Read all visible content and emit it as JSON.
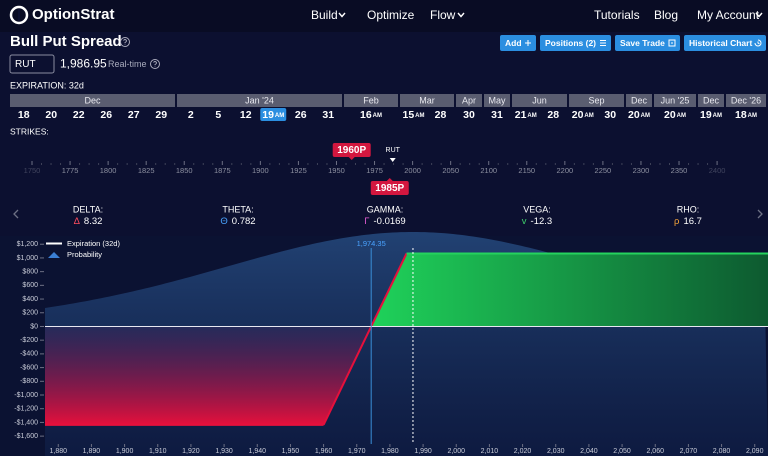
{
  "nav": {
    "logo": "OptionStrat",
    "items": [
      "Build",
      "Optimize",
      "Flow"
    ],
    "right": [
      "Tutorials",
      "Blog",
      "My Account"
    ]
  },
  "header": {
    "title": "Bull Put Spread",
    "buttons": [
      "Add",
      "Positions (2)",
      "Save Trade",
      "Historical Chart"
    ]
  },
  "symbol": {
    "ticker": "RUT",
    "price": {
      "value": 1986.95,
      "label": "1,986.95"
    },
    "feed": "Real-time"
  },
  "expiration": {
    "label": "EXPIRATION: 32d",
    "months": [
      {
        "name": "Dec",
        "dates": [
          "18",
          "20",
          "22",
          "26",
          "27",
          "29"
        ]
      },
      {
        "name": "Jan '24",
        "dates": [
          "2",
          "5",
          "12",
          {
            "day": "19",
            "session": "AM",
            "selected": true
          },
          "26",
          "31"
        ]
      },
      {
        "name": "Feb",
        "dates": [
          {
            "day": "16",
            "session": "AM"
          }
        ]
      },
      {
        "name": "Mar",
        "dates": [
          {
            "day": "15",
            "session": "AM"
          },
          "28"
        ]
      },
      {
        "name": "Apr",
        "dates": [
          "30"
        ]
      },
      {
        "name": "May",
        "dates": [
          "31"
        ]
      },
      {
        "name": "Jun",
        "dates": [
          {
            "day": "21",
            "session": "AM"
          },
          "28"
        ]
      },
      {
        "name": "Sep",
        "dates": [
          {
            "day": "20",
            "session": "AM"
          },
          "30"
        ]
      },
      {
        "name": "Dec",
        "dates": [
          {
            "day": "20",
            "session": "AM"
          }
        ]
      },
      {
        "name": "Jun '25",
        "dates": [
          {
            "day": "20",
            "session": "AM"
          }
        ]
      },
      {
        "name": "Dec",
        "dates": [
          {
            "day": "19",
            "session": "AM"
          }
        ]
      },
      {
        "name": "Dec '26",
        "dates": [
          {
            "day": "18",
            "session": "AM"
          }
        ]
      }
    ]
  },
  "strikes": {
    "label": "STRIKES:",
    "ticks": [
      1750,
      1775,
      1800,
      1825,
      1850,
      1875,
      1900,
      1925,
      1950,
      1975,
      2000,
      2050,
      2100,
      2150,
      2200,
      2250,
      2300,
      2350,
      2400
    ],
    "legs": [
      {
        "label": "1960P",
        "strike": 1960,
        "color": "#d3173f"
      },
      {
        "label": "1985P",
        "strike": 1985,
        "color": "#d3173f"
      }
    ],
    "underlying": "RUT"
  },
  "greeks": [
    {
      "name": "DELTA:",
      "symbol": "Δ",
      "value": 8.32,
      "color": "#ff4d5e"
    },
    {
      "name": "THETA:",
      "symbol": "Θ",
      "value": 0.782,
      "color": "#4aa3ff"
    },
    {
      "name": "GAMMA:",
      "symbol": "Γ",
      "value": -0.0169,
      "color": "#e05cd0"
    },
    {
      "name": "VEGA:",
      "symbol": "v",
      "value": -12.3,
      "color": "#3fd16b"
    },
    {
      "name": "RHO:",
      "symbol": "ρ",
      "value": 16.7,
      "color": "#f2a23a"
    }
  ],
  "chart_data": {
    "type": "line",
    "x": [
      1876,
      1960,
      1985,
      2094
    ],
    "series": [
      {
        "name": "Expiration (32d)",
        "color": "#ffffff",
        "values": [
          -1435,
          -1435,
          1065,
          1065
        ]
      }
    ],
    "probability": {
      "name": "Probability",
      "color": "#3b7fd4"
    },
    "xlim": [
      1876,
      2094
    ],
    "ylim": [
      -1890,
      1320
    ],
    "yticks": [
      {
        "value": 1200,
        "label": "$1,200"
      },
      {
        "value": 1000,
        "label": "$1,000"
      },
      {
        "value": 800,
        "label": "$800"
      },
      {
        "value": 600,
        "label": "$600"
      },
      {
        "value": 400,
        "label": "$400"
      },
      {
        "value": 200,
        "label": "$200"
      },
      {
        "value": 0,
        "label": "$0"
      },
      {
        "value": -200,
        "label": "-$200"
      },
      {
        "value": -400,
        "label": "-$400"
      },
      {
        "value": -600,
        "label": "-$600"
      },
      {
        "value": -800,
        "label": "-$800"
      },
      {
        "value": -1000,
        "label": "-$1,000"
      },
      {
        "value": -1200,
        "label": "-$1,200"
      },
      {
        "value": -1400,
        "label": "-$1,400"
      },
      {
        "value": -1600,
        "label": "-$1,600"
      }
    ],
    "xticks": [
      {
        "value": 1880,
        "label": "1,880"
      },
      {
        "value": 1890,
        "label": "1,890"
      },
      {
        "value": 1900,
        "label": "1,900"
      },
      {
        "value": 1910,
        "label": "1,910"
      },
      {
        "value": 1920,
        "label": "1,920"
      },
      {
        "value": 1930,
        "label": "1,930"
      },
      {
        "value": 1940,
        "label": "1,940"
      },
      {
        "value": 1950,
        "label": "1,950"
      },
      {
        "value": 1960,
        "label": "1,960"
      },
      {
        "value": 1970,
        "label": "1,970"
      },
      {
        "value": 1980,
        "label": "1,980"
      },
      {
        "value": 1990,
        "label": "1,990"
      },
      {
        "value": 2000,
        "label": "2,000"
      },
      {
        "value": 2010,
        "label": "2,010"
      },
      {
        "value": 2020,
        "label": "2,020"
      },
      {
        "value": 2030,
        "label": "2,030"
      },
      {
        "value": 2040,
        "label": "2,040"
      },
      {
        "value": 2050,
        "label": "2,050"
      },
      {
        "value": 2060,
        "label": "2,060"
      },
      {
        "value": 2070,
        "label": "2,070"
      },
      {
        "value": 2080,
        "label": "2,080"
      },
      {
        "value": 2090,
        "label": "2,090"
      }
    ],
    "annotations": [
      {
        "label": "1,974.35",
        "x": 1974.35
      }
    ]
  }
}
